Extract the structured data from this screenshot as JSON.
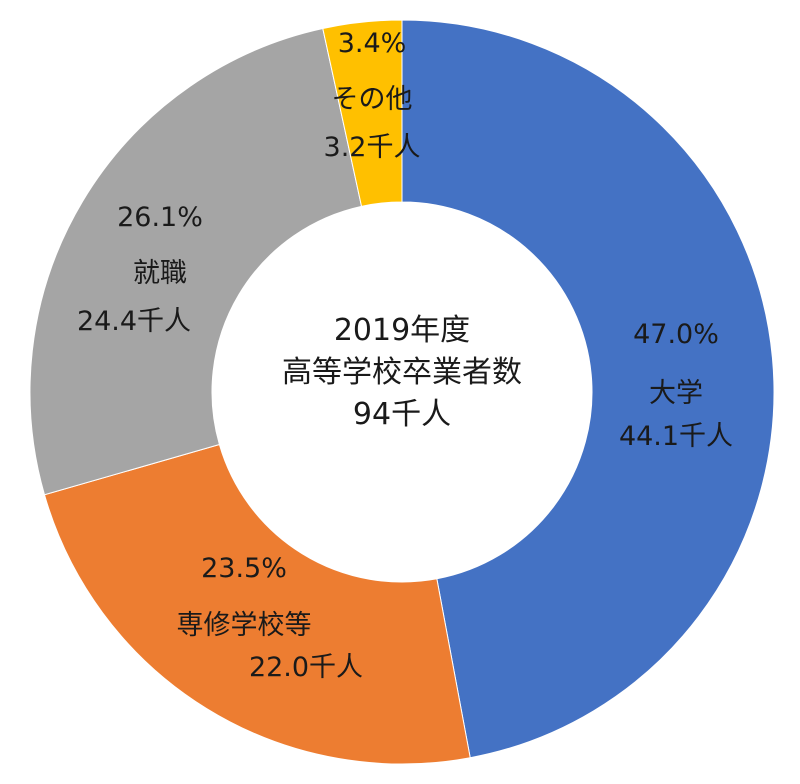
{
  "chart_data": {
    "type": "pie",
    "variant": "donut",
    "center_text": [
      "2019年度",
      "高等学校卒業者数",
      "94千人"
    ],
    "slices": [
      {
        "name": "大学",
        "percent": "47.0%",
        "value": 44.1,
        "value_label": "44.1千人",
        "color": "#4472C4"
      },
      {
        "name": "専修学校等",
        "percent": "23.5%",
        "value": 22.0,
        "value_label": "22.0千人",
        "color": "#ED7D31"
      },
      {
        "name": "就職",
        "percent": "26.1%",
        "value": 24.4,
        "value_label": "24.4千人",
        "color": "#A5A5A5"
      },
      {
        "name": "その他",
        "percent": "3.4%",
        "value": 3.2,
        "value_label": "3.2千人",
        "color": "#FFC000"
      }
    ],
    "legend": "none"
  }
}
